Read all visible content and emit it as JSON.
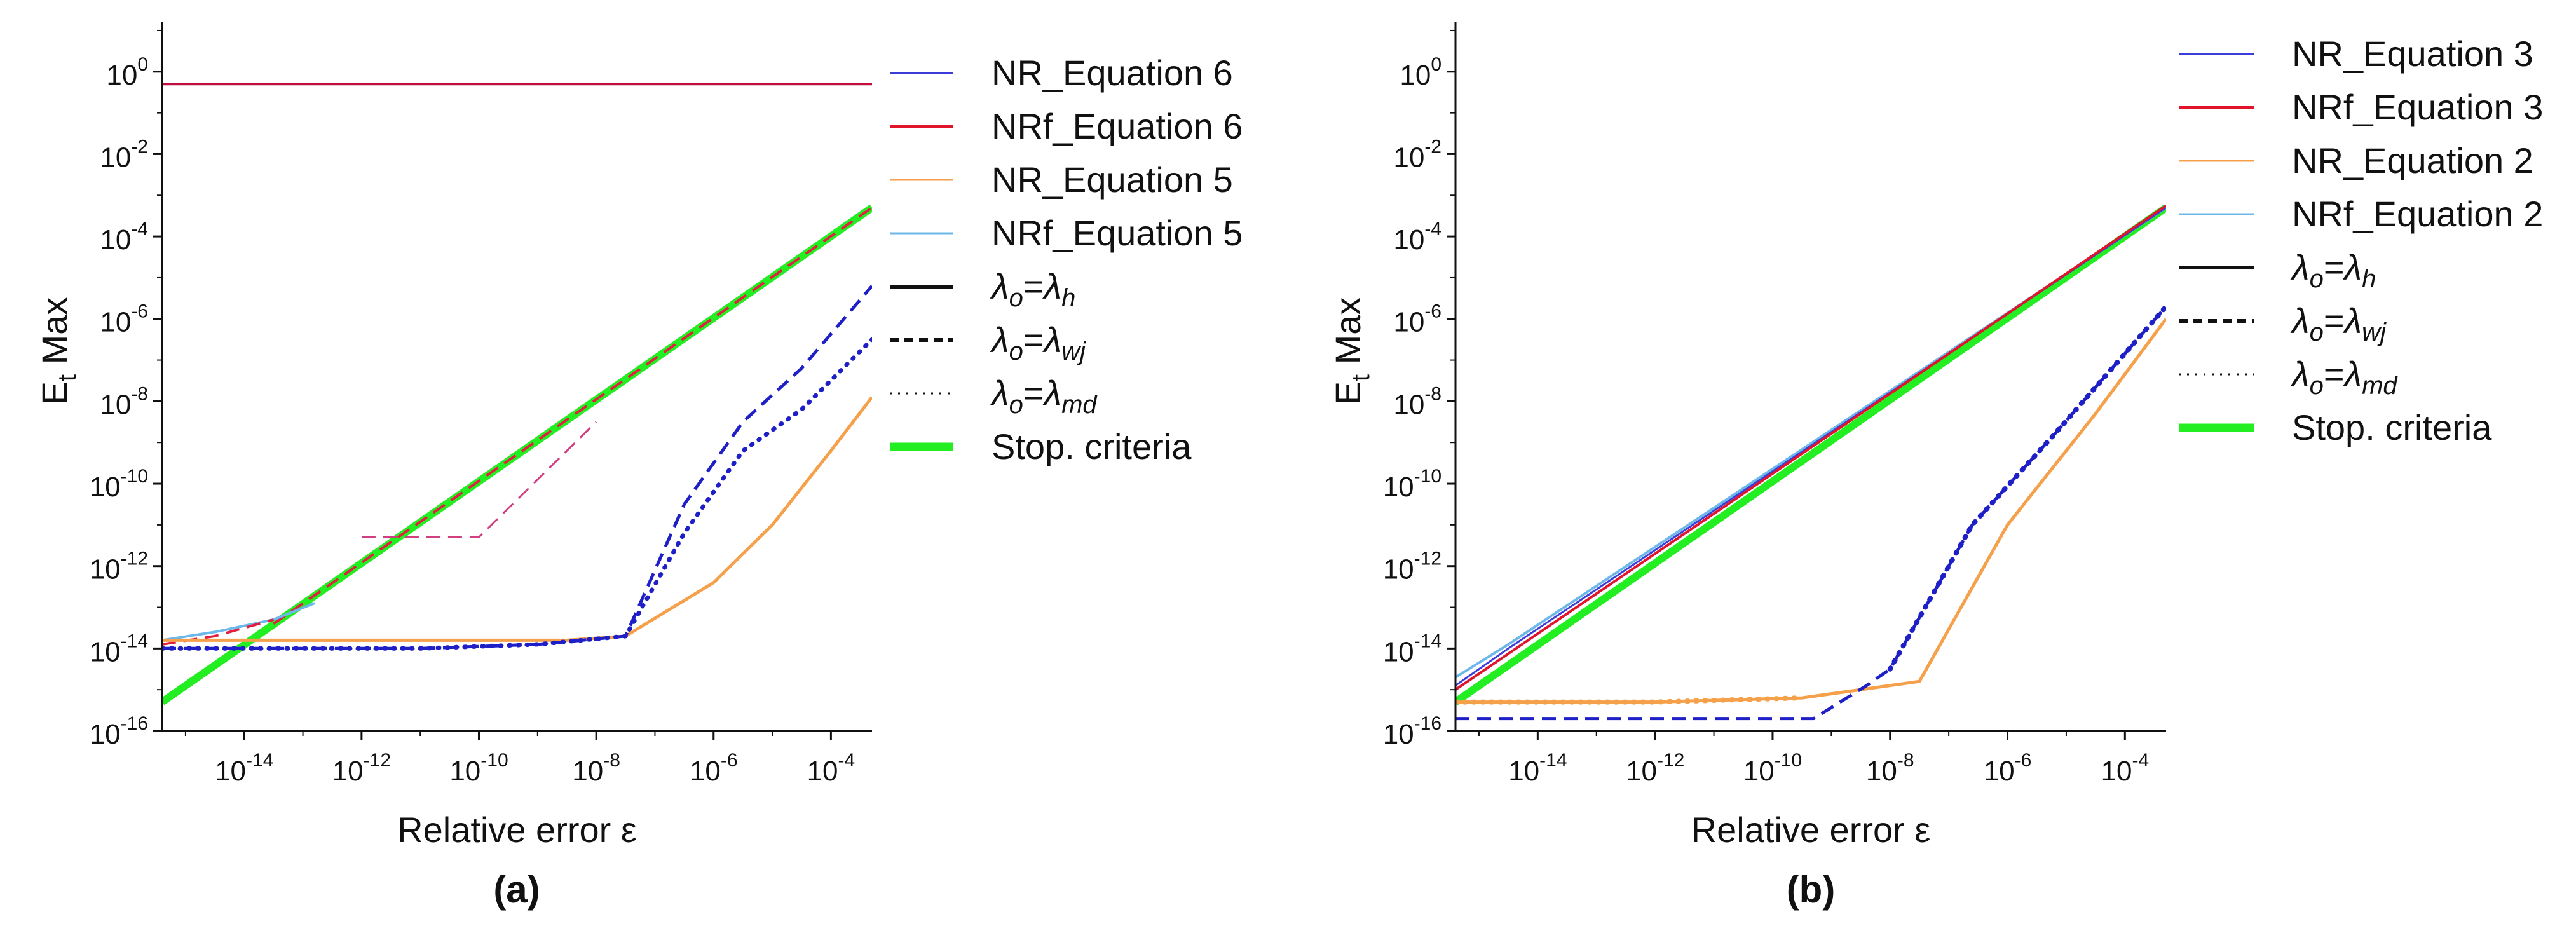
{
  "chart_data": [
    {
      "type": "line",
      "panel_label": "(a)",
      "title": "",
      "xlabel": "Relative error ε",
      "ylabel": {
        "base": "E",
        "sub": "t",
        "rest": " Max"
      },
      "xscale": "log10",
      "yscale": "log10",
      "xlim_exp": [
        -15.4,
        -3.3
      ],
      "ylim_exp": [
        -16,
        1.2
      ],
      "xticks": [
        {
          "base": "10",
          "exp": "-14",
          "v": -14
        },
        {
          "base": "10",
          "exp": "-12",
          "v": -12
        },
        {
          "base": "10",
          "exp": "-10",
          "v": -10
        },
        {
          "base": "10",
          "exp": "-8",
          "v": -8
        },
        {
          "base": "10",
          "exp": "-6",
          "v": -6
        },
        {
          "base": "10",
          "exp": "-4",
          "v": -4
        }
      ],
      "yticks": [
        {
          "base": "10",
          "exp": "0",
          "v": 0
        },
        {
          "base": "10",
          "exp": "-2",
          "v": -2
        },
        {
          "base": "10",
          "exp": "-4",
          "v": -4
        },
        {
          "base": "10",
          "exp": "-6",
          "v": -6
        },
        {
          "base": "10",
          "exp": "-8",
          "v": -8
        },
        {
          "base": "10",
          "exp": "-10",
          "v": -10
        },
        {
          "base": "10",
          "exp": "-12",
          "v": -12
        },
        {
          "base": "10",
          "exp": "-14",
          "v": -14
        },
        {
          "base": "10",
          "exp": "-16",
          "v": -16
        }
      ],
      "legend": {
        "placement": "right",
        "entries": [
          {
            "label": "NR_Equation 6",
            "color": "#3c3cd8",
            "style": "solid",
            "width": "thin"
          },
          {
            "label": "NRf_Equation 6",
            "color": "#e0142a",
            "style": "solid",
            "width": "medium"
          },
          {
            "label": "NR_Equation 5",
            "color": "#f5a04a",
            "style": "solid",
            "width": "thin"
          },
          {
            "label": "NRf_Equation 5",
            "color": "#6cb8ea",
            "style": "solid",
            "width": "thin"
          },
          {
            "label": "",
            "lambda": {
              "lhs": "λ",
              "lhs_sub": "o",
              "rhs": "λ",
              "rhs_sub": "h"
            },
            "color": "#111111",
            "style": "solid",
            "width": "medium"
          },
          {
            "label": "",
            "lambda": {
              "lhs": "λ",
              "lhs_sub": "o",
              "rhs": "λ",
              "rhs_sub": "wj"
            },
            "color": "#111111",
            "style": "dashed",
            "width": "medium"
          },
          {
            "label": "",
            "lambda": {
              "lhs": "λ",
              "lhs_sub": "o",
              "rhs": "λ",
              "rhs_sub": "md"
            },
            "color": "#111111",
            "style": "dotted",
            "width": "thin"
          },
          {
            "label": "Stop. criteria",
            "color": "#22ee22",
            "style": "solid",
            "width": "thick"
          }
        ]
      },
      "series": [
        {
          "name": "NR_Equation 6 / NRf_Equation 6 (upper)",
          "color": "#c01040",
          "style": "solid",
          "width": 4,
          "x_exp": [
            -15.4,
            -3.3
          ],
          "y_exp": [
            -0.3,
            -0.3
          ]
        },
        {
          "name": "Stop. criteria",
          "color": "#22ee22",
          "style": "solid",
          "width": 12,
          "x_exp": [
            -15.4,
            -3.3
          ],
          "y_exp": [
            -15.3,
            -3.3
          ]
        },
        {
          "name": "NRf_Equation 6 (stop line)",
          "color": "#e02040",
          "style": "dashed",
          "width": 4,
          "x_exp": [
            -13.5,
            -3.3
          ],
          "y_exp": [
            -13.4,
            -3.3
          ]
        },
        {
          "name": "NR_Equation 6 (λwj)",
          "color": "#d04080",
          "style": "dashed",
          "width": 3,
          "x_exp": [
            -12.0,
            -10.0,
            -8.0
          ],
          "y_exp": [
            -11.3,
            -11.3,
            -8.5
          ]
        },
        {
          "name": "NRf_Equation 5",
          "color": "#6cb8ea",
          "style": "solid",
          "width": 4,
          "x_exp": [
            -15.4,
            -14.5,
            -13.5,
            -12.8
          ],
          "y_exp": [
            -13.8,
            -13.6,
            -13.3,
            -12.9
          ]
        },
        {
          "name": "NR_Equation 6 (lower start)",
          "color": "#e02040",
          "style": "dashed",
          "width": 4,
          "x_exp": [
            -15.4,
            -14.5,
            -13.5
          ],
          "y_exp": [
            -13.9,
            -13.7,
            -13.3
          ]
        },
        {
          "name": "NR_Equation 5",
          "color": "#f5a04a",
          "style": "solid",
          "width": 5,
          "x_exp": [
            -15.4,
            -12,
            -10,
            -8.5,
            -7.5,
            -6,
            -5,
            -4,
            -3.3
          ],
          "y_exp": [
            -13.8,
            -13.8,
            -13.8,
            -13.8,
            -13.7,
            -12.4,
            -11.0,
            -9.2,
            -7.9
          ]
        },
        {
          "name": "NR_Equation 6 (λwj lower)",
          "color": "#1f1fc8",
          "style": "dashed",
          "width": 5,
          "x_exp": [
            -15.4,
            -13,
            -11,
            -9,
            -7.5,
            -6.5,
            -5.5,
            -4.5,
            -3.3
          ],
          "y_exp": [
            -14.0,
            -14.0,
            -14.0,
            -13.9,
            -13.7,
            -10.5,
            -8.5,
            -7.2,
            -5.2
          ]
        },
        {
          "name": "NR_Equation 6 (λmd lower)",
          "color": "#1f1fc8",
          "style": "dotted",
          "width": 7,
          "x_exp": [
            -15.4,
            -13,
            -11,
            -9,
            -7.5,
            -6.5,
            -5.5,
            -4.5,
            -3.3
          ],
          "y_exp": [
            -14.0,
            -14.0,
            -14.0,
            -13.9,
            -13.7,
            -11.2,
            -9.2,
            -8.2,
            -6.5
          ]
        }
      ]
    },
    {
      "type": "line",
      "panel_label": "(b)",
      "title": "",
      "xlabel": "Relative error ε",
      "ylabel": {
        "base": "E",
        "sub": "t",
        "rest": " Max"
      },
      "xscale": "log10",
      "yscale": "log10",
      "xlim_exp": [
        -15.4,
        -3.3
      ],
      "ylim_exp": [
        -16,
        1.2
      ],
      "xticks": [
        {
          "base": "10",
          "exp": "-14",
          "v": -14
        },
        {
          "base": "10",
          "exp": "-12",
          "v": -12
        },
        {
          "base": "10",
          "exp": "-10",
          "v": -10
        },
        {
          "base": "10",
          "exp": "-8",
          "v": -8
        },
        {
          "base": "10",
          "exp": "-6",
          "v": -6
        },
        {
          "base": "10",
          "exp": "-4",
          "v": -4
        }
      ],
      "yticks": [
        {
          "base": "10",
          "exp": "0",
          "v": 0
        },
        {
          "base": "10",
          "exp": "-2",
          "v": -2
        },
        {
          "base": "10",
          "exp": "-4",
          "v": -4
        },
        {
          "base": "10",
          "exp": "-6",
          "v": -6
        },
        {
          "base": "10",
          "exp": "-8",
          "v": -8
        },
        {
          "base": "10",
          "exp": "-10",
          "v": -10
        },
        {
          "base": "10",
          "exp": "-12",
          "v": -12
        },
        {
          "base": "10",
          "exp": "-14",
          "v": -14
        },
        {
          "base": "10",
          "exp": "-16",
          "v": -16
        }
      ],
      "legend": {
        "placement": "right",
        "entries": [
          {
            "label": "NR_Equation 3",
            "color": "#3c3cd8",
            "style": "solid",
            "width": "thin"
          },
          {
            "label": "NRf_Equation 3",
            "color": "#e0142a",
            "style": "solid",
            "width": "medium"
          },
          {
            "label": "NR_Equation 2",
            "color": "#f5a04a",
            "style": "solid",
            "width": "thin"
          },
          {
            "label": "NRf_Equation 2",
            "color": "#6cb8ea",
            "style": "solid",
            "width": "thin"
          },
          {
            "label": "",
            "lambda": {
              "lhs": "λ",
              "lhs_sub": "o",
              "rhs": "λ",
              "rhs_sub": "h"
            },
            "color": "#111111",
            "style": "solid",
            "width": "medium"
          },
          {
            "label": "",
            "lambda": {
              "lhs": "λ",
              "lhs_sub": "o",
              "rhs": "λ",
              "rhs_sub": "wj"
            },
            "color": "#111111",
            "style": "dashed",
            "width": "medium"
          },
          {
            "label": "",
            "lambda": {
              "lhs": "λ",
              "lhs_sub": "o",
              "rhs": "λ",
              "rhs_sub": "md"
            },
            "color": "#111111",
            "style": "dotted",
            "width": "thin"
          },
          {
            "label": "Stop. criteria",
            "color": "#22ee22",
            "style": "solid",
            "width": "thick"
          }
        ]
      },
      "series": [
        {
          "name": "Stop. criteria",
          "color": "#22ee22",
          "style": "solid",
          "width": 12,
          "x_exp": [
            -15.4,
            -3.3
          ],
          "y_exp": [
            -15.3,
            -3.3
          ]
        },
        {
          "name": "NRf_Equation 2",
          "color": "#6cb8ea",
          "style": "solid",
          "width": 4,
          "x_exp": [
            -15.4,
            -14.5,
            -3.3
          ],
          "y_exp": [
            -14.7,
            -13.9,
            -3.3
          ]
        },
        {
          "name": "NR_Equation 3",
          "color": "#3c3cd8",
          "style": "solid",
          "width": 3,
          "x_exp": [
            -15.4,
            -14.5,
            -3.3
          ],
          "y_exp": [
            -14.9,
            -14.0,
            -3.3
          ]
        },
        {
          "name": "NRf_Equation 3",
          "color": "#e0142a",
          "style": "solid",
          "width": 4,
          "x_exp": [
            -15.4,
            -3.3
          ],
          "y_exp": [
            -15.0,
            -3.25
          ]
        },
        {
          "name": "NR_Equation 2 (λh)",
          "color": "#f5a04a",
          "style": "solid",
          "width": 5,
          "x_exp": [
            -15.4,
            -12,
            -9.5,
            -7.5,
            -6,
            -4.5,
            -3.3
          ],
          "y_exp": [
            -15.3,
            -15.3,
            -15.2,
            -14.8,
            -11.0,
            -8.3,
            -6.0
          ]
        },
        {
          "name": "NR_Equation 2 (λmd)",
          "color": "#f5a04a",
          "style": "dotted",
          "width": 8,
          "x_exp": [
            -15.4,
            -12,
            -9.5
          ],
          "y_exp": [
            -15.3,
            -15.3,
            -15.2
          ]
        },
        {
          "name": "NR_Equation 3 (λwj)",
          "color": "#1f1fc8",
          "style": "dashed",
          "width": 5,
          "x_exp": [
            -15.4,
            -12,
            -9.3,
            -8.4,
            -8.0,
            -6.6,
            -5.2,
            -3.3
          ],
          "y_exp": [
            -15.7,
            -15.7,
            -15.7,
            -14.9,
            -14.5,
            -11.0,
            -8.8,
            -5.7
          ]
        },
        {
          "name": "NR_Equation 3 (λmd)",
          "color": "#1f1fc8",
          "style": "dotted",
          "width": 8,
          "x_exp": [
            -8.0,
            -6.6,
            -5.2,
            -3.3
          ],
          "y_exp": [
            -14.5,
            -11.0,
            -8.8,
            -5.7
          ]
        }
      ]
    }
  ]
}
